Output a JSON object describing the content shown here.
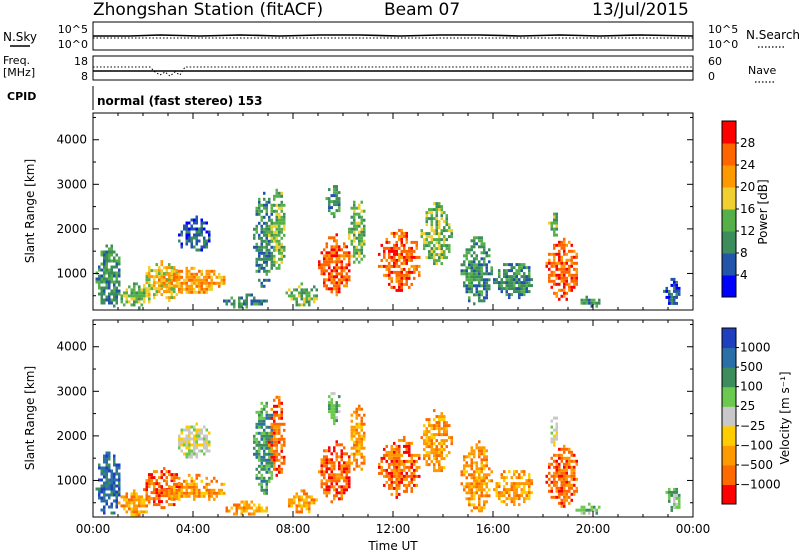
{
  "header": {
    "station": "Zhongshan Station (fitACF)",
    "beam": "Beam 07",
    "date": "13/Jul/2015"
  },
  "top_panels": {
    "nsky": {
      "label": "N.Sky",
      "ticks_left": [
        "10^5",
        "10^0"
      ]
    },
    "nsearch": {
      "label": "N.Search",
      "ticks_right": [
        "10^5",
        "10^0"
      ]
    },
    "freq": {
      "label": "Freq.",
      "unit": "[MHz]",
      "ticks_left": [
        "18",
        "8"
      ]
    },
    "nave": {
      "label": "Nave",
      "ticks_right": [
        "60",
        "0"
      ]
    },
    "cpid": {
      "label": "CPID",
      "value": "normal (fast stereo) 153"
    }
  },
  "colors": {
    "power_scale": [
      "#0000ff",
      "#2255aa",
      "#3d8c5c",
      "#56b04a",
      "#f0d030",
      "#ff9900",
      "#ff6600",
      "#ff0000"
    ],
    "velocity_scale": [
      "#ff0000",
      "#ff6a00",
      "#ff9900",
      "#ffcc00",
      "#c8c8c8",
      "#6cc94f",
      "#3d8c5c",
      "#2a6fa8",
      "#1f3fbf"
    ]
  },
  "chart_data": [
    {
      "type": "heatmap",
      "panel": "power",
      "title": "",
      "xlabel": "",
      "ylabel": "Slant Range [km]",
      "xticks": [
        "00:00",
        "04:00",
        "08:00",
        "12:00",
        "16:00",
        "20:00",
        "00:00"
      ],
      "yticks": [
        "1000",
        "2000",
        "3000",
        "4000"
      ],
      "xlim_hours": [
        0,
        24
      ],
      "ylim_km": [
        180,
        4600
      ],
      "colorbar": {
        "label": "Power [dB]",
        "ticks": [
          "4",
          "8",
          "12",
          "16",
          "20",
          "24",
          "28"
        ],
        "range": [
          0,
          32
        ]
      },
      "echo_regions": [
        {
          "t": [
            0.1,
            1.1
          ],
          "r": [
            250,
            1650
          ],
          "level": 2
        },
        {
          "t": [
            1.0,
            2.3
          ],
          "r": [
            250,
            800
          ],
          "level": 3
        },
        {
          "t": [
            2.0,
            3.5
          ],
          "r": [
            400,
            1300
          ],
          "level": 4
        },
        {
          "t": [
            2.6,
            5.3
          ],
          "r": [
            550,
            1150
          ],
          "level": 5
        },
        {
          "t": [
            3.3,
            4.7
          ],
          "r": [
            1500,
            2300
          ],
          "level": 1
        },
        {
          "t": [
            5.2,
            7.0
          ],
          "r": [
            250,
            550
          ],
          "level": 2
        },
        {
          "t": [
            6.4,
            7.2
          ],
          "r": [
            700,
            2900
          ],
          "level": 2
        },
        {
          "t": [
            7.0,
            7.7
          ],
          "r": [
            1100,
            2900
          ],
          "level": 3
        },
        {
          "t": [
            7.7,
            9.0
          ],
          "r": [
            300,
            800
          ],
          "level": 3
        },
        {
          "t": [
            9.0,
            10.3
          ],
          "r": [
            550,
            1900
          ],
          "level": 6
        },
        {
          "t": [
            9.3,
            9.9
          ],
          "r": [
            2300,
            3050
          ],
          "level": 2
        },
        {
          "t": [
            10.2,
            10.9
          ],
          "r": [
            1200,
            2700
          ],
          "level": 3
        },
        {
          "t": [
            11.4,
            13.1
          ],
          "r": [
            650,
            2000
          ],
          "level": 6
        },
        {
          "t": [
            13.1,
            14.3
          ],
          "r": [
            1200,
            2600
          ],
          "level": 3
        },
        {
          "t": [
            14.7,
            15.9
          ],
          "r": [
            300,
            1900
          ],
          "level": 2
        },
        {
          "t": [
            16.0,
            17.6
          ],
          "r": [
            450,
            1300
          ],
          "level": 2
        },
        {
          "t": [
            18.1,
            19.4
          ],
          "r": [
            450,
            1800
          ],
          "level": 6
        },
        {
          "t": [
            18.2,
            18.6
          ],
          "r": [
            1800,
            2500
          ],
          "level": 3
        },
        {
          "t": [
            19.3,
            20.3
          ],
          "r": [
            250,
            500
          ],
          "level": 2
        },
        {
          "t": [
            22.8,
            23.5
          ],
          "r": [
            300,
            900
          ],
          "level": 1
        }
      ]
    },
    {
      "type": "heatmap",
      "panel": "velocity",
      "title": "",
      "xlabel": "Time UT",
      "ylabel": "Slant Range [km]",
      "xticks": [
        "00:00",
        "04:00",
        "08:00",
        "12:00",
        "16:00",
        "20:00",
        "00:00"
      ],
      "yticks": [
        "1000",
        "2000",
        "3000",
        "4000"
      ],
      "xlim_hours": [
        0,
        24
      ],
      "ylim_km": [
        180,
        4600
      ],
      "colorbar": {
        "label": "Velocity [m s⁻¹]",
        "ticks": [
          "1000",
          "500",
          "100",
          "25",
          "−25",
          "−100",
          "−500",
          "−1000"
        ],
        "range": [
          -1200,
          1200
        ]
      },
      "echo_regions": [
        {
          "t": [
            0.1,
            1.1
          ],
          "r": [
            250,
            1650
          ],
          "level": 7
        },
        {
          "t": [
            1.0,
            2.3
          ],
          "r": [
            250,
            800
          ],
          "level": 2
        },
        {
          "t": [
            2.0,
            3.5
          ],
          "r": [
            400,
            1300
          ],
          "level": 1
        },
        {
          "t": [
            2.6,
            5.3
          ],
          "r": [
            550,
            1150
          ],
          "level": 2
        },
        {
          "t": [
            3.3,
            4.7
          ],
          "r": [
            1500,
            2300
          ],
          "level": 4
        },
        {
          "t": [
            5.2,
            7.0
          ],
          "r": [
            250,
            550
          ],
          "level": 2
        },
        {
          "t": [
            6.4,
            7.2
          ],
          "r": [
            700,
            2900
          ],
          "level": 6
        },
        {
          "t": [
            7.0,
            7.7
          ],
          "r": [
            1100,
            2900
          ],
          "level": 1
        },
        {
          "t": [
            7.7,
            9.0
          ],
          "r": [
            300,
            800
          ],
          "level": 2
        },
        {
          "t": [
            9.0,
            10.3
          ],
          "r": [
            550,
            1900
          ],
          "level": 1
        },
        {
          "t": [
            9.3,
            9.9
          ],
          "r": [
            2300,
            3050
          ],
          "level": 5
        },
        {
          "t": [
            10.2,
            10.9
          ],
          "r": [
            1200,
            2700
          ],
          "level": 2
        },
        {
          "t": [
            11.4,
            13.1
          ],
          "r": [
            650,
            2000
          ],
          "level": 1
        },
        {
          "t": [
            13.1,
            14.3
          ],
          "r": [
            1200,
            2600
          ],
          "level": 2
        },
        {
          "t": [
            14.7,
            15.9
          ],
          "r": [
            300,
            1900
          ],
          "level": 2
        },
        {
          "t": [
            16.0,
            17.6
          ],
          "r": [
            450,
            1300
          ],
          "level": 2
        },
        {
          "t": [
            18.1,
            19.4
          ],
          "r": [
            450,
            1800
          ],
          "level": 1
        },
        {
          "t": [
            18.2,
            18.6
          ],
          "r": [
            1800,
            2500
          ],
          "level": 4
        },
        {
          "t": [
            19.3,
            20.3
          ],
          "r": [
            250,
            500
          ],
          "level": 5
        },
        {
          "t": [
            22.8,
            23.5
          ],
          "r": [
            300,
            900
          ],
          "level": 5
        }
      ]
    }
  ]
}
